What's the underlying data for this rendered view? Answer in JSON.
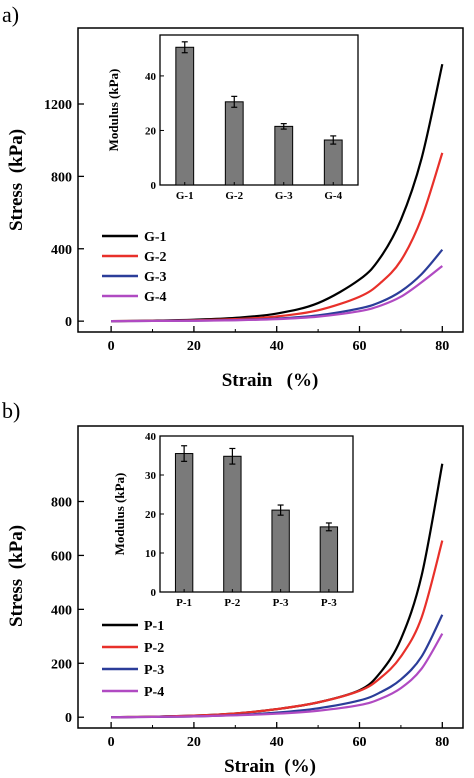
{
  "chart_data": [
    {
      "panel_label": "a)",
      "type": "line",
      "xlabel": "Strain   (%)",
      "ylabel": "Stress  (kPa)",
      "xlim": [
        -8,
        85
      ],
      "ylim": [
        -60,
        1620
      ],
      "x_ticks": [
        "0",
        "20",
        "40",
        "60",
        "80"
      ],
      "y_ticks": [
        "0",
        "400",
        "800",
        "1200"
      ],
      "legend_position": "center-left",
      "series": [
        {
          "name": "G-1",
          "color": "#000000",
          "points": [
            [
              0,
              0
            ],
            [
              10,
              3
            ],
            [
              20,
              8
            ],
            [
              30,
              18
            ],
            [
              40,
              42
            ],
            [
              50,
              100
            ],
            [
              60,
              230
            ],
            [
              65,
              350
            ],
            [
              70,
              560
            ],
            [
              75,
              900
            ],
            [
              80,
              1420
            ]
          ]
        },
        {
          "name": "G-2",
          "color": "#e8302a",
          "points": [
            [
              0,
              0
            ],
            [
              10,
              2
            ],
            [
              20,
              5
            ],
            [
              30,
              11
            ],
            [
              40,
              26
            ],
            [
              50,
              60
            ],
            [
              60,
              135
            ],
            [
              65,
              210
            ],
            [
              70,
              335
            ],
            [
              75,
              570
            ],
            [
              80,
              930
            ]
          ]
        },
        {
          "name": "G-3",
          "color": "#2b3d99",
          "points": [
            [
              0,
              0
            ],
            [
              10,
              1
            ],
            [
              20,
              3
            ],
            [
              30,
              6
            ],
            [
              40,
              14
            ],
            [
              50,
              32
            ],
            [
              60,
              70
            ],
            [
              65,
              105
            ],
            [
              70,
              165
            ],
            [
              75,
              260
            ],
            [
              80,
              395
            ]
          ]
        },
        {
          "name": "G-4",
          "color": "#b04ac2",
          "points": [
            [
              0,
              0
            ],
            [
              10,
              1
            ],
            [
              20,
              2
            ],
            [
              30,
              5
            ],
            [
              40,
              11
            ],
            [
              50,
              25
            ],
            [
              60,
              55
            ],
            [
              65,
              85
            ],
            [
              70,
              135
            ],
            [
              75,
              215
            ],
            [
              80,
              305
            ]
          ]
        }
      ],
      "inset": {
        "type": "bar",
        "ylabel": "Modulus (kPa)",
        "categories": [
          "G-1",
          "G-2",
          "G-3",
          "G-4"
        ],
        "values": [
          50.5,
          30.5,
          21.5,
          16.5
        ],
        "errors": [
          2.0,
          2.0,
          1.0,
          1.5
        ],
        "ylim": [
          0,
          55
        ],
        "y_ticks": [
          "0",
          "20",
          "40"
        ],
        "bar_color": "#7a7a7a"
      }
    },
    {
      "panel_label": "b)",
      "type": "line",
      "xlabel": "Strain  (%)",
      "ylabel": "Stress  (kPa)",
      "xlim": [
        -8,
        85
      ],
      "ylim": [
        -40,
        1080
      ],
      "x_ticks": [
        "0",
        "20",
        "40",
        "60",
        "80"
      ],
      "y_ticks": [
        "0",
        "200",
        "400",
        "600",
        "800"
      ],
      "legend_position": "bottom-left",
      "series": [
        {
          "name": "P-1",
          "color": "#000000",
          "points": [
            [
              0,
              0
            ],
            [
              10,
              2
            ],
            [
              20,
              6
            ],
            [
              30,
              14
            ],
            [
              40,
              30
            ],
            [
              50,
              55
            ],
            [
              60,
              100
            ],
            [
              65,
              165
            ],
            [
              70,
              290
            ],
            [
              75,
              525
            ],
            [
              80,
              940
            ]
          ]
        },
        {
          "name": "P-2",
          "color": "#e8302a",
          "points": [
            [
              0,
              0
            ],
            [
              10,
              2
            ],
            [
              20,
              6
            ],
            [
              30,
              14
            ],
            [
              40,
              30
            ],
            [
              50,
              55
            ],
            [
              60,
              98
            ],
            [
              65,
              145
            ],
            [
              70,
              225
            ],
            [
              75,
              370
            ],
            [
              80,
              655
            ]
          ]
        },
        {
          "name": "P-3",
          "color": "#2b3d99",
          "points": [
            [
              0,
              0
            ],
            [
              10,
              1
            ],
            [
              20,
              3
            ],
            [
              30,
              8
            ],
            [
              40,
              17
            ],
            [
              50,
              33
            ],
            [
              60,
              62
            ],
            [
              65,
              92
            ],
            [
              70,
              140
            ],
            [
              75,
              225
            ],
            [
              80,
              380
            ]
          ]
        },
        {
          "name": "P-4",
          "color": "#b04ac2",
          "points": [
            [
              0,
              0
            ],
            [
              10,
              1
            ],
            [
              20,
              3
            ],
            [
              30,
              7
            ],
            [
              40,
              13
            ],
            [
              50,
              24
            ],
            [
              60,
              45
            ],
            [
              65,
              68
            ],
            [
              70,
              108
            ],
            [
              75,
              180
            ],
            [
              80,
              310
            ]
          ]
        }
      ],
      "inset": {
        "type": "bar",
        "ylabel": "Modulus (kPa)",
        "categories": [
          "P-1",
          "P-2",
          "P-3",
          "P-3"
        ],
        "values": [
          35.5,
          34.8,
          21.0,
          16.7
        ],
        "errors": [
          2.0,
          2.0,
          1.3,
          1.0
        ],
        "ylim": [
          0,
          40
        ],
        "y_ticks": [
          "0",
          "10",
          "20",
          "30",
          "40"
        ],
        "bar_color": "#7a7a7a"
      }
    }
  ]
}
